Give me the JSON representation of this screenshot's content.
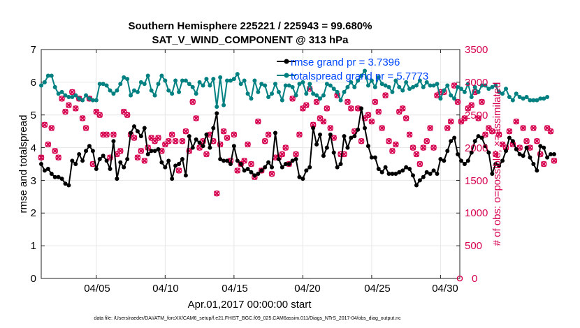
{
  "chart_data": {
    "type": "line",
    "title_line1": "Southern Hemisphere 225221 / 225943 = 99.680%",
    "title_line2": "SAT_V_WIND_COMPONENT @ 313 hPa",
    "xlabel": "Apr.01,2017 00:00:00 start",
    "ylabel_left": "rmse and totalspread",
    "ylabel_right": "# of obs: o=possible; ×=assimilated",
    "xlim": [
      1,
      31.4
    ],
    "ylim_left": [
      0,
      7
    ],
    "ylim_right": [
      0,
      3500
    ],
    "x_ticks": [
      {
        "x": 5,
        "label": "04/05"
      },
      {
        "x": 10,
        "label": "04/10"
      },
      {
        "x": 15,
        "label": "04/15"
      },
      {
        "x": 20,
        "label": "04/20"
      },
      {
        "x": 25,
        "label": "04/25"
      },
      {
        "x": 30,
        "label": "04/30"
      }
    ],
    "y_ticks_left": [
      "0",
      "1",
      "2",
      "3",
      "4",
      "5",
      "6",
      "7"
    ],
    "y_ticks_right": [
      "0",
      "500",
      "1000",
      "1500",
      "2000",
      "2500",
      "3000",
      "3500"
    ],
    "colors": {
      "rmse": "#000000",
      "totalspread": "#008080",
      "obs": "#d6004f",
      "legend_text": "#0047ff"
    },
    "series": [
      {
        "name": "rmse",
        "legend": "rmse grand pr = 3.7396",
        "x_start": 1.0,
        "x_step": 0.25,
        "values": [
          3.5,
          3.3,
          3.35,
          3.2,
          3.1,
          3.1,
          3.05,
          2.9,
          2.85,
          3.6,
          3.5,
          3.8,
          3.6,
          3.9,
          4.05,
          3.9,
          3.35,
          3.65,
          3.75,
          3.6,
          3.35,
          4.2,
          3.05,
          3.55,
          3.4,
          3.65,
          4.45,
          4.65,
          4.5,
          4.35,
          4.6,
          3.8,
          3.9,
          3.9,
          3.95,
          3.55,
          3.4,
          3.6,
          3.05,
          3.45,
          3.5,
          3.65,
          3.15,
          4.35,
          4.0,
          4.25,
          4.15,
          4.05,
          4.4,
          4.0,
          4.6,
          5.05,
          3.65,
          3.6,
          3.6,
          3.5,
          4.05,
          3.6,
          3.5,
          3.3,
          3.35,
          3.25,
          3.15,
          3.2,
          3.3,
          3.4,
          3.55,
          3.4,
          4.45,
          3.65,
          3.4,
          3.5,
          3.5,
          3.6,
          3.65,
          3.1,
          3.05,
          3.3,
          3.4,
          4.6,
          4.1,
          4.4,
          3.75,
          4.0,
          4.4,
          3.85,
          3.4,
          3.5,
          4.35,
          4.0,
          4.3,
          4.35,
          4.55,
          5.2,
          4.6,
          4.05,
          3.7,
          3.7,
          3.35,
          3.25,
          3.4,
          3.2,
          3.2,
          3.2,
          3.25,
          3.3,
          3.4,
          3.35,
          3.15,
          2.85,
          3.0,
          3.1,
          3.25,
          3.2,
          3.3,
          3.2,
          3.65,
          3.6,
          3.9,
          4.2,
          4.3,
          3.8,
          3.6,
          3.5,
          3.6,
          3.85,
          4.2,
          4.35,
          4.3,
          4.05,
          3.85,
          3.2,
          3.5,
          3.45,
          3.6,
          3.9,
          4.3,
          4.2,
          3.95,
          3.8,
          3.75,
          4.0,
          3.7,
          3.5,
          3.3,
          4.05,
          4.0,
          3.7,
          3.8,
          3.8
        ]
      },
      {
        "name": "totalspread",
        "legend": "totalspread grand pr = 5.7773",
        "x_start": 1.0,
        "x_step": 0.25,
        "values": [
          5.9,
          6.0,
          6.2,
          6.2,
          5.85,
          5.65,
          5.7,
          5.6,
          5.55,
          5.55,
          5.6,
          5.5,
          5.45,
          5.6,
          5.5,
          5.45,
          5.45,
          5.95,
          5.95,
          5.9,
          5.75,
          5.65,
          5.75,
          5.95,
          6.15,
          6.1,
          5.6,
          5.75,
          5.7,
          6.0,
          5.95,
          6.2,
          5.75,
          5.6,
          5.95,
          6.2,
          6.05,
          5.75,
          5.65,
          6.05,
          5.7,
          6.05,
          6.05,
          5.95,
          5.85,
          5.65,
          6.0,
          5.9,
          6.1,
          5.9,
          6.1,
          5.25,
          6.15,
          5.3,
          6.05,
          6.05,
          6.1,
          6.25,
          5.95,
          6.05,
          5.65,
          5.5,
          6.05,
          5.7,
          5.95,
          5.9,
          5.55,
          5.65,
          5.95,
          5.7,
          5.45,
          5.9,
          5.9,
          5.85,
          5.6,
          5.95,
          6.0,
          5.65,
          5.95,
          5.65,
          5.6,
          5.5,
          5.6,
          5.95,
          5.9,
          5.8,
          5.7,
          5.45,
          5.7,
          5.85,
          6.0,
          5.85,
          6.05,
          6.2,
          6.35,
          5.9,
          6.05,
          5.85,
          6.15,
          5.95,
          5.9,
          5.85,
          5.7,
          6.05,
          5.85,
          5.75,
          6.0,
          5.8,
          5.85,
          5.9,
          6.05,
          5.85,
          6.0,
          5.9,
          5.9,
          5.95,
          5.5,
          5.75,
          5.9,
          5.6,
          5.5,
          5.85,
          5.8,
          5.7,
          5.95,
          5.55,
          5.85,
          5.7,
          5.9,
          5.9,
          5.8,
          5.85,
          5.9,
          5.7,
          5.65,
          5.8,
          5.55,
          5.45,
          5.65,
          5.55,
          5.5,
          5.55,
          5.45,
          5.45,
          5.45,
          5.5,
          5.5,
          5.55
        ]
      },
      {
        "name": "obs_assimilated",
        "x_start": 1.0,
        "x_step": 0.25,
        "values": [
          1850,
          2350,
          2050,
          2300,
          1950,
          1850,
          2750,
          2550,
          2650,
          2850,
          2600,
          2750,
          2450,
          2300,
          2750,
          1750,
          2550,
          2500,
          2200,
          2200,
          1850,
          2200,
          1900,
          1950,
          2550,
          2500,
          2200,
          2150,
          1850,
          1950,
          1800,
          2000,
          2150,
          2100,
          2150,
          1950,
          2050,
          2100,
          2200,
          2100,
          1650,
          2100,
          2250,
          1950,
          2700,
          2450,
          2000,
          2100,
          1900,
          2200,
          2100,
          1300,
          2050,
          2250,
          2150,
          1800,
          2200,
          1650,
          1750,
          1800,
          2050,
          1750,
          1550,
          2400,
          1650,
          2100,
          2200,
          1600,
          1850,
          1850,
          1900,
          2000,
          1750,
          2750,
          1900,
          2200,
          2600,
          2650,
          2900,
          2350,
          2700,
          2450,
          2400,
          2600,
          2300,
          2150,
          2800,
          1900,
          1900,
          2700,
          2600,
          2250,
          2600,
          2100,
          2450,
          2500,
          2400,
          2700,
          2550,
          2300,
          2800,
          2100,
          1950,
          2050,
          2550,
          2600,
          2450,
          2200,
          2000,
          1900,
          1750,
          2000,
          2100,
          2300,
          2000,
          2800,
          2850,
          2850,
          2300,
          2400,
          2950,
          2700,
          2400,
          2450,
          2600,
          2650,
          2850,
          2450,
          2700,
          2200,
          2300,
          2250,
          1900,
          2200,
          2050,
          2000,
          2250,
          2050,
          2400,
          2000,
          2300,
          2100,
          2000,
          2300,
          2100,
          1900,
          1750,
          2300,
          2250,
          1800
        ]
      },
      {
        "name": "obs_possible",
        "x_start": 1.0,
        "x_step": 0.25,
        "values": [
          1850,
          2350,
          2050,
          2300,
          1950,
          1850,
          2750,
          2550,
          2650,
          2850,
          2600,
          2750,
          2450,
          2300,
          2750,
          1750,
          2550,
          2500,
          2200,
          2200,
          1850,
          2200,
          1900,
          1950,
          2550,
          2500,
          2200,
          2150,
          1850,
          1950,
          1800,
          2000,
          2150,
          2100,
          2150,
          1950,
          2050,
          2100,
          2200,
          2100,
          1650,
          2100,
          2250,
          1950,
          2700,
          2450,
          2000,
          2100,
          1900,
          2200,
          2100,
          1300,
          2050,
          2250,
          2150,
          1800,
          2200,
          1650,
          1750,
          1800,
          2050,
          1750,
          1550,
          2400,
          1650,
          2100,
          2200,
          1600,
          1850,
          1850,
          1900,
          2000,
          1750,
          2750,
          1900,
          2200,
          2600,
          2650,
          2900,
          2350,
          2700,
          2450,
          2400,
          2600,
          2300,
          2150,
          2800,
          1900,
          1900,
          2700,
          2600,
          2250,
          2600,
          2100,
          2450,
          2500,
          2400,
          2700,
          2550,
          2300,
          2800,
          2100,
          1950,
          2050,
          2550,
          2600,
          2450,
          2200,
          2000,
          1900,
          1750,
          2000,
          2100,
          2300,
          2000,
          2800,
          2850,
          2850,
          2300,
          2400,
          2950,
          2700,
          2400,
          2450,
          2600,
          2650,
          2850,
          2450,
          2700,
          2200,
          2300,
          2250,
          1900,
          2200,
          2050,
          2000,
          2250,
          2050,
          2400,
          2000,
          2300,
          2100,
          2000,
          2300,
          2100,
          1900,
          1750,
          2300,
          2250,
          1800
        ]
      }
    ],
    "footer": "data file: /Users/raeder/DAI/ATM_forcXX/CAM6_setup/f.e21.FHIST_BGC.f09_025.CAM6assim.011/Diags_NTrS_2017-04/obs_diag_output.nc"
  }
}
